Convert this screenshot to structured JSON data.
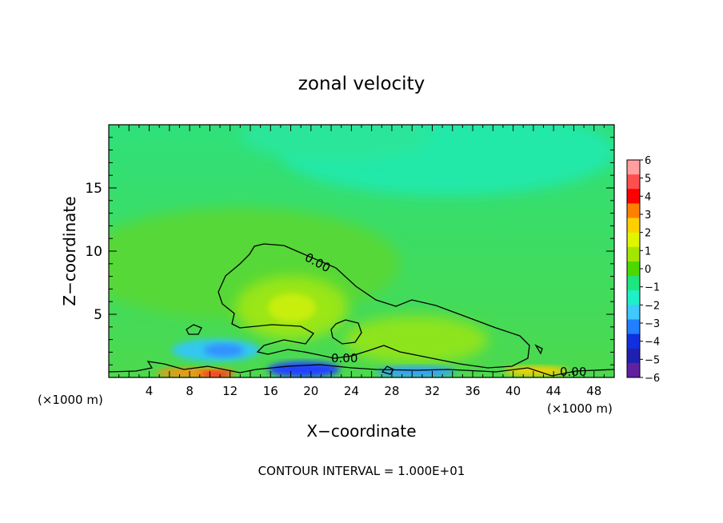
{
  "chart_data": {
    "type": "heatmap",
    "title": "zonal velocity",
    "xlabel": "X−coordinate",
    "ylabel": "Z−coordinate",
    "x_unit_left": "(×1000 m)",
    "x_unit_right": "(×1000 m)",
    "footer": "CONTOUR INTERVAL = 1.000E+01",
    "xlim": [
      0,
      50
    ],
    "ylim": [
      0,
      20
    ],
    "x_ticks": [
      "4",
      "8",
      "12",
      "16",
      "20",
      "24",
      "28",
      "32",
      "36",
      "40",
      "44",
      "48"
    ],
    "y_ticks": [
      "5",
      "10",
      "15"
    ],
    "contour_label": "0.00",
    "colorbar": {
      "ticks": [
        "6",
        "5",
        "4",
        "3",
        "2",
        "1",
        "0",
        "−1",
        "−2",
        "−3",
        "−4",
        "−5",
        "−6"
      ],
      "colors": [
        "#ff9fa0",
        "#ff4e4e",
        "#ff0000",
        "#ff8000",
        "#ffd000",
        "#e0f500",
        "#a4e600",
        "#4cd900",
        "#1ee67e",
        "#1ef0c8",
        "#40c8ff",
        "#2080ff",
        "#1030e0",
        "#2020b0",
        "#6020a0"
      ]
    }
  }
}
